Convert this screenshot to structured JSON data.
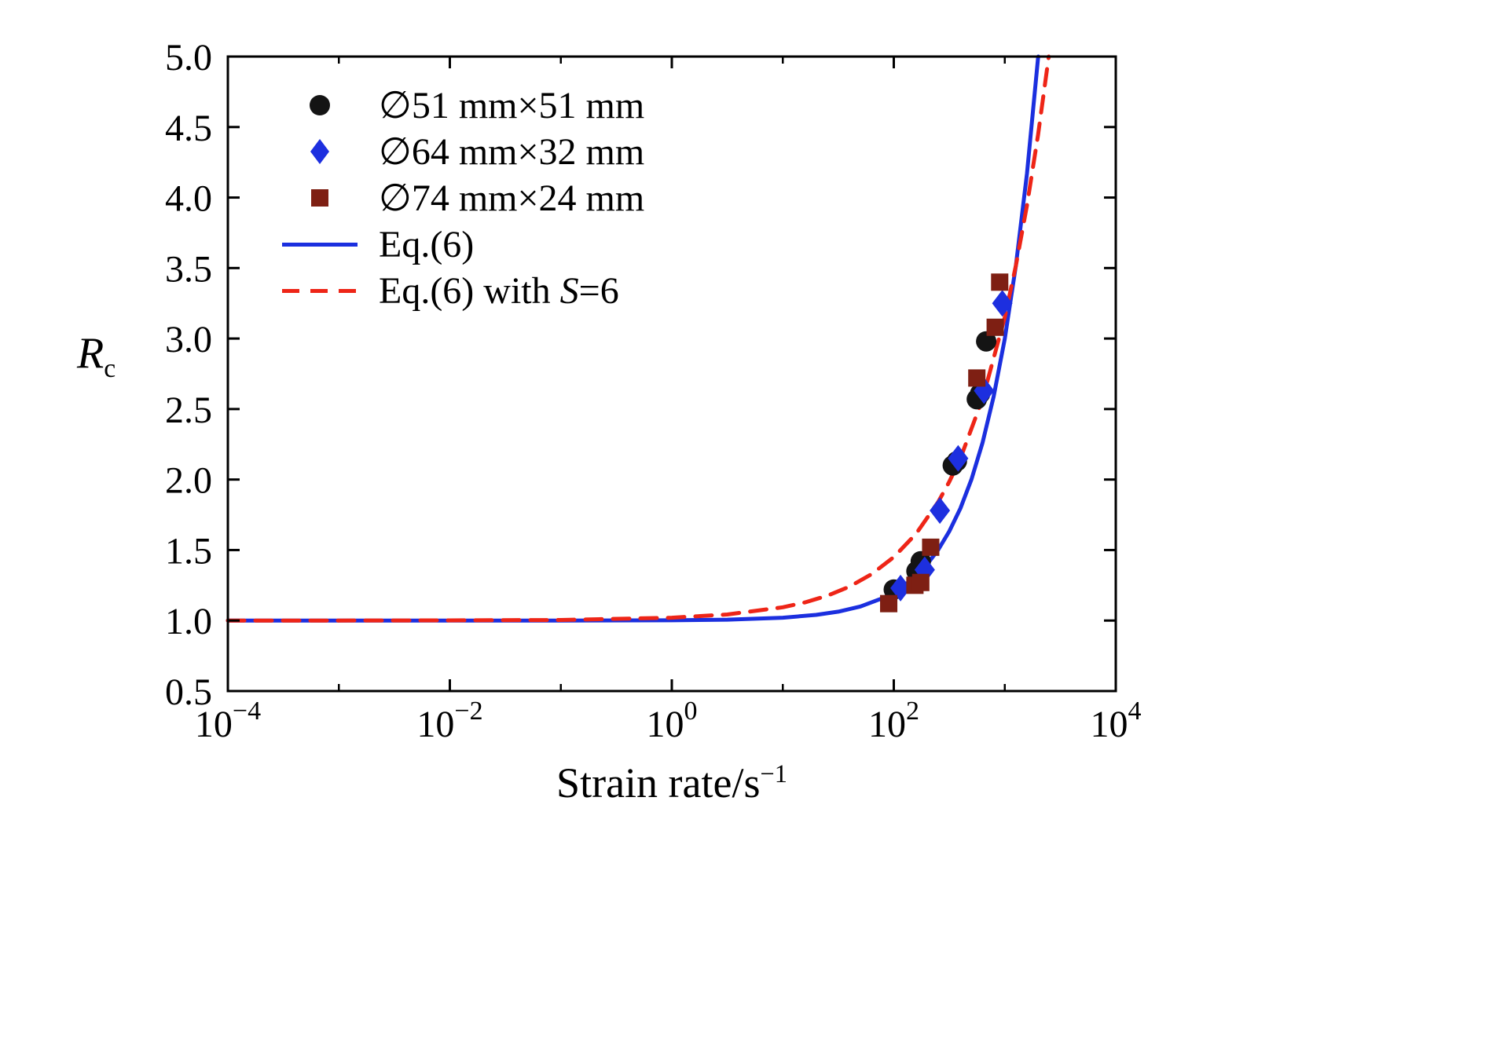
{
  "chart_data": {
    "type": "line+scatter",
    "x_scale": "log10",
    "x_log_range": [
      -4,
      4
    ],
    "y_range": [
      0.5,
      5.0
    ],
    "grid": false,
    "legend_position": "top-left-inside",
    "xlabel": {
      "text": "Strain rate/s",
      "sup": "−1"
    },
    "ylabel": {
      "text": "R",
      "sub": "c"
    },
    "x_tick_base": "10",
    "x_major_ticks": [
      {
        "log": -4,
        "exp": "−4"
      },
      {
        "log": -2,
        "exp": "−2"
      },
      {
        "log": 0,
        "exp": "0"
      },
      {
        "log": 2,
        "exp": "2"
      },
      {
        "log": 4,
        "exp": "4"
      }
    ],
    "x_minor_ticks_log": [
      -3,
      -1,
      1,
      3
    ],
    "y_ticks": [
      0.5,
      1.0,
      1.5,
      2.0,
      2.5,
      3.0,
      3.5,
      4.0,
      4.5,
      5.0
    ],
    "y_tick_labels": [
      "0.5",
      "1.0",
      "1.5",
      "2.0",
      "2.5",
      "3.0",
      "3.5",
      "4.0",
      "4.5",
      "5.0"
    ],
    "series": [
      {
        "id": "series-51",
        "label": "∅51 mm×51 mm",
        "type": "scatter",
        "marker": "circle",
        "color": "#141414",
        "points": [
          [
            100,
            1.22
          ],
          [
            160,
            1.35
          ],
          [
            175,
            1.42
          ],
          [
            340,
            2.1
          ],
          [
            370,
            2.13
          ],
          [
            560,
            2.57
          ],
          [
            600,
            2.61
          ],
          [
            680,
            2.98
          ]
        ]
      },
      {
        "id": "series-64",
        "label": "∅64 mm×32 mm",
        "type": "scatter",
        "marker": "diamond",
        "color": "#1d2fdf",
        "points": [
          [
            115,
            1.23
          ],
          [
            190,
            1.36
          ],
          [
            260,
            1.78
          ],
          [
            380,
            2.15
          ],
          [
            650,
            2.63
          ],
          [
            950,
            3.25
          ]
        ]
      },
      {
        "id": "series-74",
        "label": "∅74 mm×24 mm",
        "type": "scatter",
        "marker": "square",
        "color": "#7e1f13",
        "points": [
          [
            90,
            1.12
          ],
          [
            155,
            1.25
          ],
          [
            175,
            1.27
          ],
          [
            215,
            1.52
          ],
          [
            560,
            2.72
          ],
          [
            820,
            3.08
          ],
          [
            900,
            3.4
          ]
        ]
      },
      {
        "id": "eq6-line",
        "label": "Eq.(6)",
        "type": "line",
        "style": "solid",
        "color": "#1b2fdf",
        "points_log": [
          [
            -4,
            1.0
          ],
          [
            -3,
            1.0
          ],
          [
            -2,
            1.0
          ],
          [
            -1,
            1.0
          ],
          [
            0,
            1.002
          ],
          [
            0.5,
            1.006
          ],
          [
            1.0,
            1.02
          ],
          [
            1.3,
            1.04
          ],
          [
            1.5,
            1.063
          ],
          [
            1.7,
            1.1
          ],
          [
            1.9,
            1.159
          ],
          [
            2.0,
            1.2
          ],
          [
            2.1,
            1.252
          ],
          [
            2.2,
            1.317
          ],
          [
            2.3,
            1.399
          ],
          [
            2.4,
            1.502
          ],
          [
            2.5,
            1.633
          ],
          [
            2.6,
            1.796
          ],
          [
            2.7,
            2.002
          ],
          [
            2.8,
            2.262
          ],
          [
            2.9,
            2.589
          ],
          [
            3.0,
            3.0
          ],
          [
            3.1,
            3.518
          ],
          [
            3.2,
            4.17
          ],
          [
            3.3,
            4.99
          ],
          [
            3.302,
            5.0
          ]
        ]
      },
      {
        "id": "eq6-s6-line",
        "label": "Eq.(6) with S=6",
        "label_parts": {
          "prefix": "Eq.(6) with ",
          "italic": "S",
          "suffix": "=6"
        },
        "type": "line",
        "style": "dashed",
        "color": "#ee2517",
        "points_log": [
          [
            -4,
            1.0
          ],
          [
            -3,
            1.0
          ],
          [
            -2,
            1.001
          ],
          [
            -1,
            1.004
          ],
          [
            0,
            1.02
          ],
          [
            0.5,
            1.043
          ],
          [
            1.0,
            1.094
          ],
          [
            1.2,
            1.129
          ],
          [
            1.4,
            1.176
          ],
          [
            1.6,
            1.24
          ],
          [
            1.8,
            1.329
          ],
          [
            2.0,
            1.45
          ],
          [
            2.2,
            1.615
          ],
          [
            2.4,
            1.841
          ],
          [
            2.5,
            1.984
          ],
          [
            2.6,
            2.151
          ],
          [
            2.8,
            2.573
          ],
          [
            3.0,
            3.152
          ],
          [
            3.1,
            3.518
          ],
          [
            3.2,
            3.944
          ],
          [
            3.3,
            4.444
          ],
          [
            3.396,
            5.0
          ]
        ]
      }
    ]
  }
}
